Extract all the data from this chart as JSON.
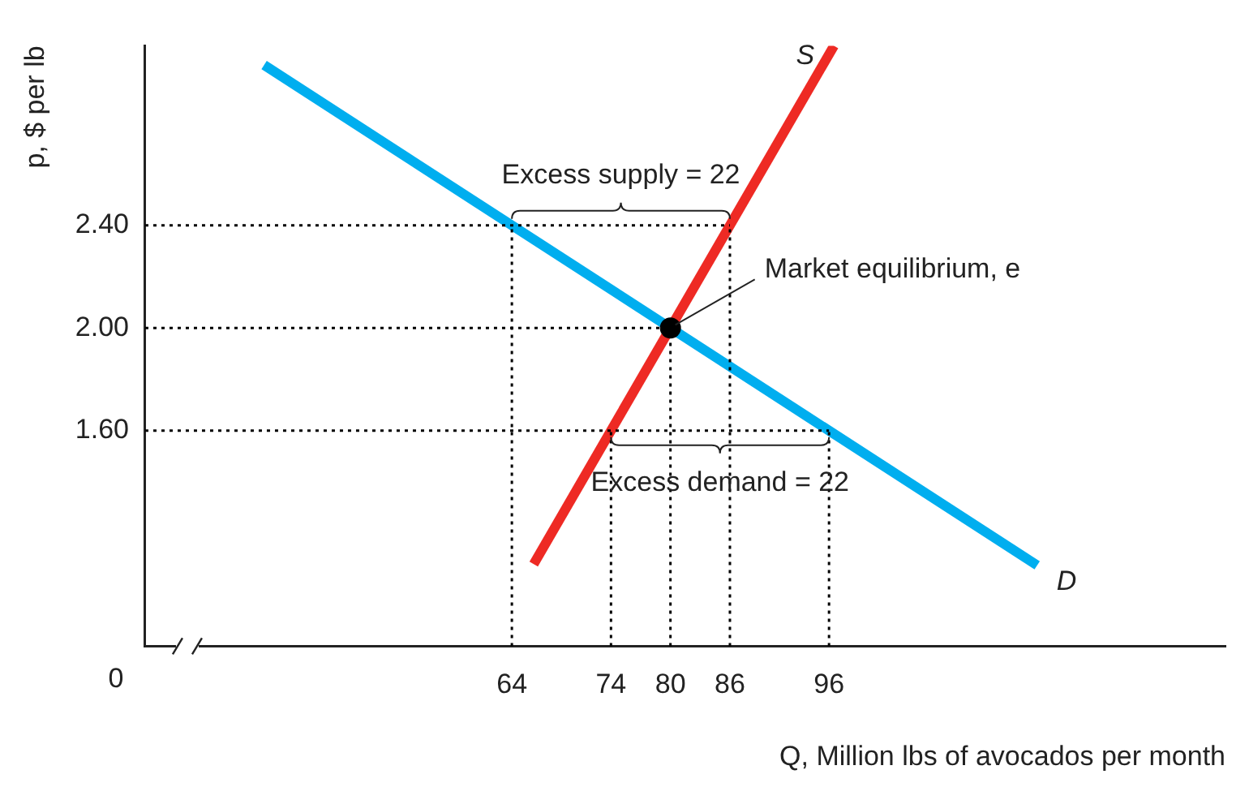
{
  "chart_data": {
    "type": "line",
    "xlabel": "Q, Million lbs of avocados per month",
    "ylabel": "p, $ per lb",
    "xlim": [
      27,
      136
    ],
    "ylim": [
      0.76,
      3.1
    ],
    "xticks": [
      64,
      74,
      80,
      86,
      96
    ],
    "yticks": [
      {
        "value": 1.6,
        "label": "1.60"
      },
      {
        "value": 2.0,
        "label": "2.00"
      },
      {
        "value": 2.4,
        "label": "2.40"
      }
    ],
    "grid": false,
    "legend": false,
    "annotations": [
      {
        "text": "Excess supply = 22",
        "x": 75,
        "y": 2.4
      },
      {
        "text": "Excess demand = 22",
        "x": 85,
        "y": 1.6
      },
      {
        "text": "Market equilibrium, e",
        "x": 80,
        "y": 2.0
      },
      "0"
    ],
    "series": [
      {
        "color": "#000000",
        "line_style": "dotted",
        "marker": "none",
        "x": [
          27,
          86
        ],
        "values": [
          2.4,
          2.4
        ]
      },
      {
        "color": "#000000",
        "line_style": "dotted",
        "marker": "none",
        "x": [
          27,
          80
        ],
        "values": [
          2.0,
          2.0
        ]
      },
      {
        "color": "#000000",
        "line_style": "dotted",
        "marker": "none",
        "x": [
          27,
          96
        ],
        "values": [
          1.6,
          1.6
        ]
      },
      {
        "color": "#000000",
        "line_style": "dotted",
        "marker": "none",
        "x": [
          64,
          64
        ],
        "values": [
          0.76,
          2.4
        ]
      },
      {
        "color": "#000000",
        "line_style": "dotted",
        "marker": "none",
        "x": [
          74,
          74
        ],
        "values": [
          0.76,
          1.6
        ]
      },
      {
        "color": "#000000",
        "line_style": "dotted",
        "marker": "none",
        "x": [
          80,
          80
        ],
        "values": [
          0.76,
          2.0
        ]
      },
      {
        "color": "#000000",
        "line_style": "dotted",
        "marker": "none",
        "x": [
          86,
          86
        ],
        "values": [
          0.76,
          2.4
        ]
      },
      {
        "color": "#000000",
        "line_style": "dotted",
        "marker": "none",
        "x": [
          96,
          96
        ],
        "values": [
          0.76,
          1.6
        ]
      },
      {
        "name": "D",
        "color": "#00aeef",
        "line_style": "solid",
        "marker": "none",
        "x": [
          39,
          117
        ],
        "values": [
          3.025,
          1.075
        ]
      },
      {
        "name": "S",
        "color": "#ee2a24",
        "line_style": "solid",
        "marker": "none",
        "x": [
          66.2,
          96.5
        ],
        "values": [
          1.08,
          3.1
        ]
      },
      {
        "type": "scatter",
        "color": "#000000",
        "marker": "circle",
        "x": [
          80
        ],
        "values": [
          2.0
        ]
      }
    ]
  }
}
